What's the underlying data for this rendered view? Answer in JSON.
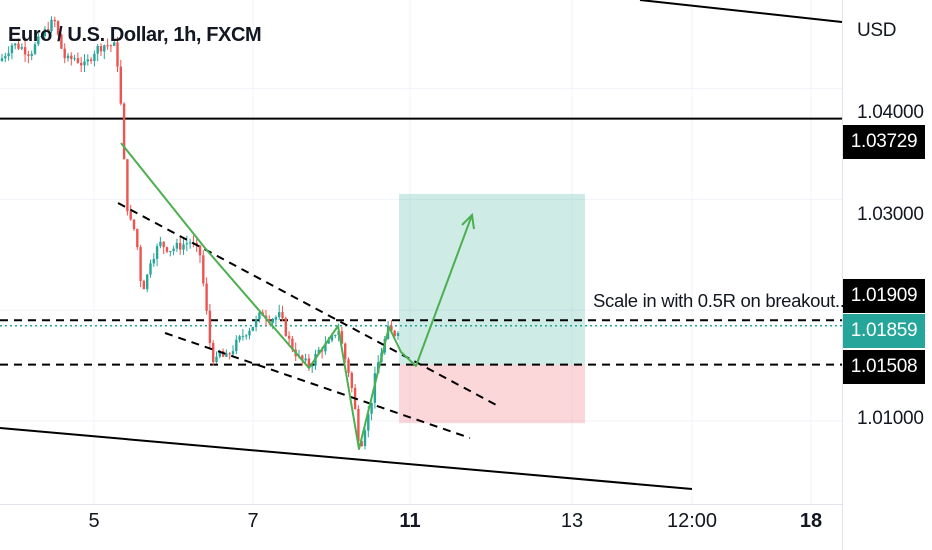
{
  "window": {
    "title": "Euro / U.S. Dollar, 1h, FXCM"
  },
  "chart_data": {
    "type": "line",
    "title": "Euro / U.S. Dollar, 1h, FXCM",
    "currency": "USD",
    "y_axis_ticks": [
      "1.04000",
      "1.03000",
      "1.01000"
    ],
    "x_axis_ticks": [
      {
        "label": "5",
        "bold": false
      },
      {
        "label": "7",
        "bold": false
      },
      {
        "label": "11",
        "bold": true
      },
      {
        "label": "13",
        "bold": false
      },
      {
        "label": "12:00",
        "bold": false
      },
      {
        "label": "18",
        "bold": true
      }
    ],
    "ylim": [
      1.0025,
      1.048
    ],
    "price_tags": [
      {
        "label": "1.03729",
        "value": 1.03729,
        "kind": "level"
      },
      {
        "label": "1.01909",
        "value": 1.01909,
        "kind": "level"
      },
      {
        "label": "1.01859",
        "value": 1.01859,
        "kind": "live"
      },
      {
        "label": "1.01508",
        "value": 1.01508,
        "kind": "level"
      }
    ],
    "series": [
      {
        "type": "candlestick",
        "colors": {
          "up": "#26a69a",
          "down": "#ef5350"
        },
        "approx_close_path": [
          [
            0,
            1.0425
          ],
          [
            12,
            1.044
          ],
          [
            20,
            1.0438
          ],
          [
            30,
            1.0432
          ],
          [
            40,
            1.0445
          ],
          [
            50,
            1.0458
          ],
          [
            55,
            1.046
          ],
          [
            60,
            1.044
          ],
          [
            66,
            1.0425
          ],
          [
            75,
            1.0428
          ],
          [
            85,
            1.042
          ],
          [
            95,
            1.0435
          ],
          [
            105,
            1.044
          ],
          [
            115,
            1.0438
          ],
          [
            118,
            1.042
          ],
          [
            122,
            1.037
          ],
          [
            126,
            1.03
          ],
          [
            130,
            1.028
          ],
          [
            136,
            1.027
          ],
          [
            140,
            1.023
          ],
          [
            145,
            1.022
          ],
          [
            150,
            1.0245
          ],
          [
            160,
            1.026
          ],
          [
            170,
            1.0255
          ],
          [
            180,
            1.0258
          ],
          [
            190,
            1.0262
          ],
          [
            200,
            1.025
          ],
          [
            205,
            1.021
          ],
          [
            210,
            1.017
          ],
          [
            215,
            1.015
          ],
          [
            220,
            1.0162
          ],
          [
            225,
            1.0155
          ],
          [
            235,
            1.0168
          ],
          [
            245,
            1.018
          ],
          [
            255,
            1.0188
          ],
          [
            262,
            1.0198
          ],
          [
            270,
            1.0192
          ],
          [
            280,
            1.0195
          ],
          [
            290,
            1.017
          ],
          [
            300,
            1.0155
          ],
          [
            310,
            1.015
          ],
          [
            320,
            1.0165
          ],
          [
            330,
            1.017
          ],
          [
            338,
            1.0185
          ],
          [
            344,
            1.016
          ],
          [
            350,
            1.014
          ],
          [
            355,
            1.011
          ],
          [
            360,
            1.0075
          ],
          [
            365,
            1.0095
          ],
          [
            370,
            1.011
          ],
          [
            376,
            1.0145
          ],
          [
            382,
            1.0165
          ],
          [
            388,
            1.0182
          ],
          [
            394,
            1.0178
          ],
          [
            400,
            1.0186
          ]
        ]
      }
    ],
    "annotations": {
      "text": "Scale in with 0.5R on breakout....",
      "horizontal_levels": [
        1.03729,
        1.01909,
        1.01508
      ],
      "long_position": {
        "entry": 1.01508,
        "target": 1.0305,
        "stop": 1.0098
      }
    }
  }
}
